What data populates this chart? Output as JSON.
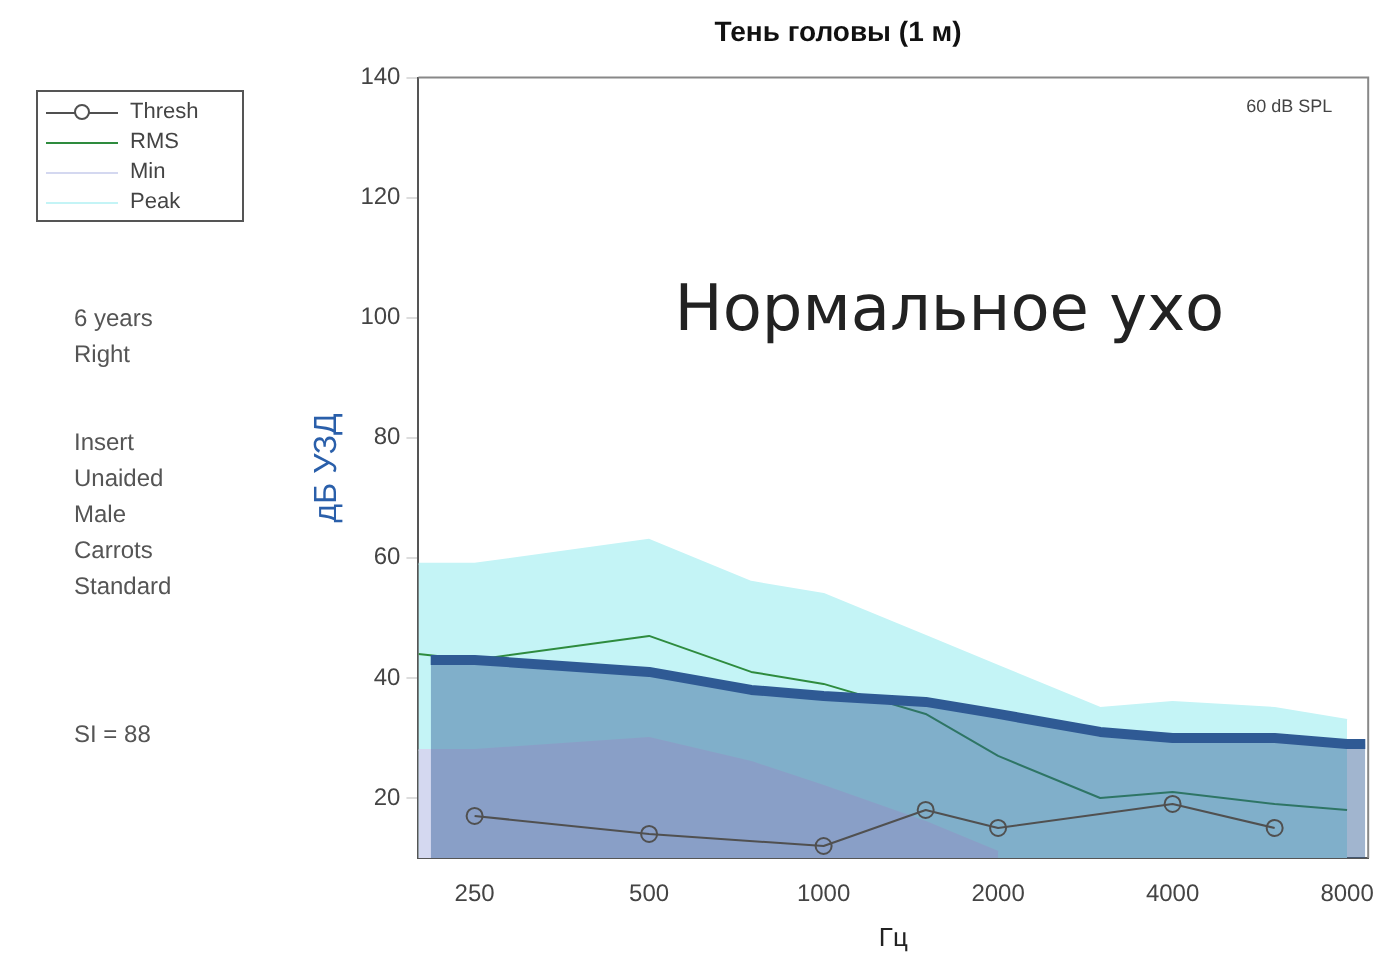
{
  "chart_data": {
    "type": "line",
    "title": "Тень головы (1 м)",
    "xlabel": "Гц",
    "ylabel": "дБ УЗД",
    "annotations": [
      "60 dB SPL",
      "Нормальное ухо",
      "6 years",
      "Right",
      "Insert",
      "Unaided",
      "Male",
      "Carrots",
      "Standard",
      "SI = 88"
    ],
    "x": [
      200,
      250,
      500,
      750,
      1000,
      1500,
      2000,
      3000,
      4000,
      6000,
      8000
    ],
    "series": [
      {
        "name": "Thresh",
        "type": "line",
        "color": "#505050",
        "marker": "circle",
        "x": [
          250,
          500,
          1000,
          1500,
          2000,
          4000,
          6000
        ],
        "values": [
          17,
          14,
          12,
          18,
          15,
          19,
          15
        ]
      },
      {
        "type": "area",
        "color": "#2f5a94",
        "x": [
          210,
          250,
          500,
          750,
          1000,
          1500,
          2000,
          3000,
          4000,
          6000,
          8000,
          8600
        ],
        "values": [
          43,
          43,
          41,
          38,
          37,
          36,
          34,
          31,
          30,
          30,
          29,
          29
        ]
      },
      {
        "name": "RMS",
        "type": "line",
        "color": "#2e8b3e",
        "values": [
          44,
          43,
          47,
          41,
          39,
          34,
          27,
          20,
          21,
          19,
          18
        ]
      },
      {
        "name": "Min",
        "type": "area",
        "color": "#d4d8f0",
        "values": [
          28,
          28,
          30,
          26,
          22,
          16,
          11,
          null,
          null,
          null,
          null
        ]
      },
      {
        "name": "Peak",
        "type": "area",
        "color": "#c4f4f6",
        "values": [
          59,
          59,
          63,
          56,
          54,
          47,
          42,
          35,
          36,
          35,
          33
        ]
      }
    ],
    "xlim": [
      200,
      8700
    ],
    "ylim": [
      10,
      140
    ],
    "xticks": [
      250,
      500,
      1000,
      2000,
      4000,
      8000
    ],
    "yticks": [
      20,
      40,
      60,
      80,
      100,
      120,
      140
    ],
    "log": "x",
    "grid": false,
    "legend": "top left"
  }
}
